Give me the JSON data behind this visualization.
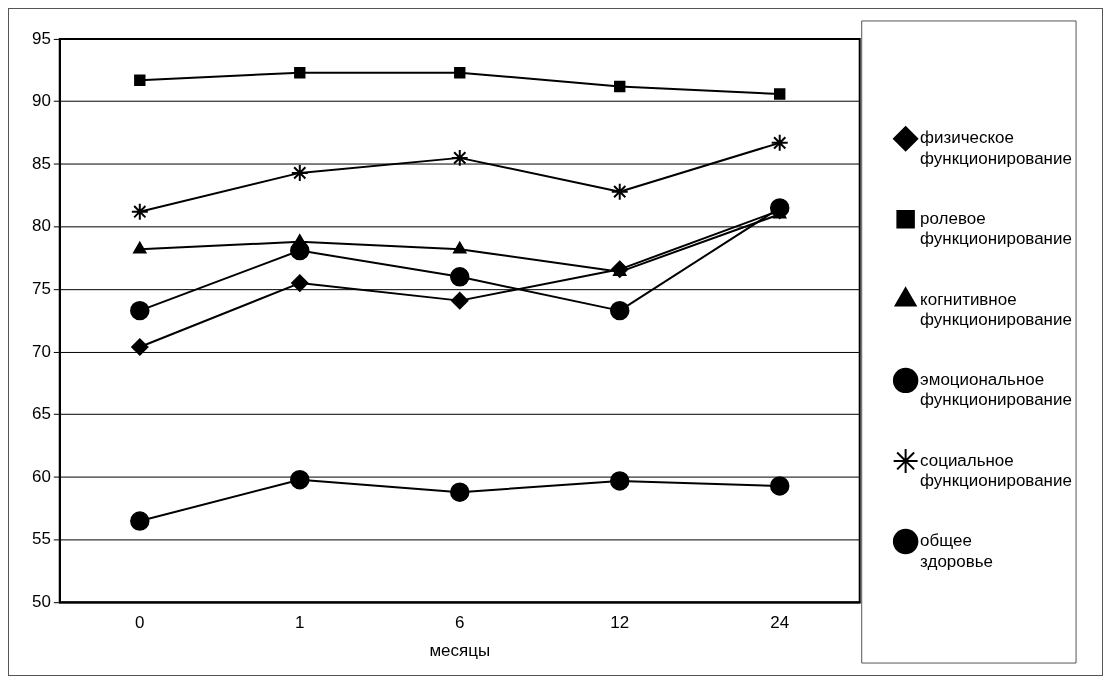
{
  "chart_data": {
    "type": "line",
    "xlabel": "месяцы",
    "categories": [
      "0",
      "1",
      "6",
      "12",
      "24"
    ],
    "ylim": [
      50,
      95
    ],
    "yticks": [
      50,
      55,
      60,
      65,
      70,
      75,
      80,
      85,
      90,
      95
    ],
    "grid": "y",
    "legend": "right",
    "line_style": "solid",
    "series": [
      {
        "name": "физическое функционирование",
        "color": "#000000",
        "marker": "diamond",
        "values": [
          70.4,
          75.5,
          74.1,
          76.6,
          81.3
        ]
      },
      {
        "name": "ролевое функционирование",
        "color": "#000000",
        "marker": "square",
        "values": [
          91.7,
          92.3,
          92.3,
          91.2,
          90.6
        ]
      },
      {
        "name": "когнитивное функционирование",
        "color": "#000000",
        "marker": "triangle",
        "values": [
          78.2,
          78.8,
          78.2,
          76.4,
          81.0
        ]
      },
      {
        "name": "эмоциональное функционирование",
        "color": "#000000",
        "marker": "circle",
        "values": [
          73.3,
          78.1,
          76.0,
          73.3,
          81.5
        ]
      },
      {
        "name": "социальное функционирование",
        "color": "#000000",
        "marker": "cross",
        "values": [
          81.2,
          84.3,
          85.5,
          82.8,
          86.7
        ]
      },
      {
        "name": "общее здоровье",
        "color": "#000000",
        "marker": "circle",
        "values": [
          56.5,
          59.8,
          58.8,
          59.7,
          59.3
        ]
      }
    ]
  }
}
